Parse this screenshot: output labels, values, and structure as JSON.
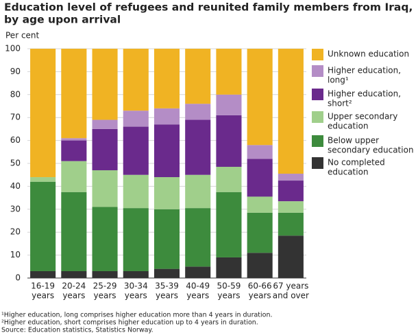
{
  "chart_data": {
    "type": "stacked-bar",
    "title": [
      "Education level of refugees and reunited family members from Iraq,",
      "by age upon arrival"
    ],
    "y_label": "Per cent",
    "categories": [
      [
        "16-19",
        "years"
      ],
      [
        "20-24",
        "years"
      ],
      [
        "25-29",
        "years"
      ],
      [
        "30-34",
        "years"
      ],
      [
        "35-39",
        "years"
      ],
      [
        "40-49",
        "years"
      ],
      [
        "50-59",
        "years"
      ],
      [
        "60-66",
        "years"
      ],
      [
        "67 years",
        "and over"
      ]
    ],
    "series": [
      {
        "name": [
          "No completed",
          "education"
        ],
        "color": "#333333",
        "values": [
          3,
          3,
          3,
          3,
          4,
          5,
          9,
          11,
          18.5
        ]
      },
      {
        "name": [
          "Below upper",
          "secondary education"
        ],
        "color": "#3d8b3d",
        "values": [
          39,
          34.5,
          28,
          27.5,
          26,
          25.5,
          28.5,
          17.5,
          10
        ]
      },
      {
        "name": [
          "Upper secondary",
          "education"
        ],
        "color": "#a0cf8b",
        "values": [
          2,
          13.5,
          16,
          14.5,
          14,
          14.5,
          11,
          7,
          5
        ]
      },
      {
        "name": [
          "Higher education,",
          "short²"
        ],
        "color": "#6a2a8c",
        "values": [
          0,
          9,
          18,
          21,
          23,
          24,
          22.5,
          16.5,
          9
        ]
      },
      {
        "name": [
          "Higher education,",
          "long¹"
        ],
        "color": "#b48dc6",
        "values": [
          0,
          1,
          4,
          7,
          7,
          7,
          9,
          6,
          3
        ]
      },
      {
        "name": [
          "Unknown education"
        ],
        "color": "#f0b323",
        "values": [
          56,
          39,
          31,
          27,
          26,
          24,
          20,
          42,
          54.5
        ]
      }
    ],
    "ylim": [
      0,
      100
    ],
    "yticks": [
      0,
      10,
      20,
      30,
      40,
      50,
      60,
      70,
      80,
      90,
      100
    ],
    "grid": true,
    "legend": "right",
    "footnotes": [
      "¹Higher education, long comprises higher education more than 4 years in duration.",
      "²Higher education, short comprises higher education up to 4 years in duration.",
      "Source: Education statistics, Statistics Norway."
    ]
  }
}
